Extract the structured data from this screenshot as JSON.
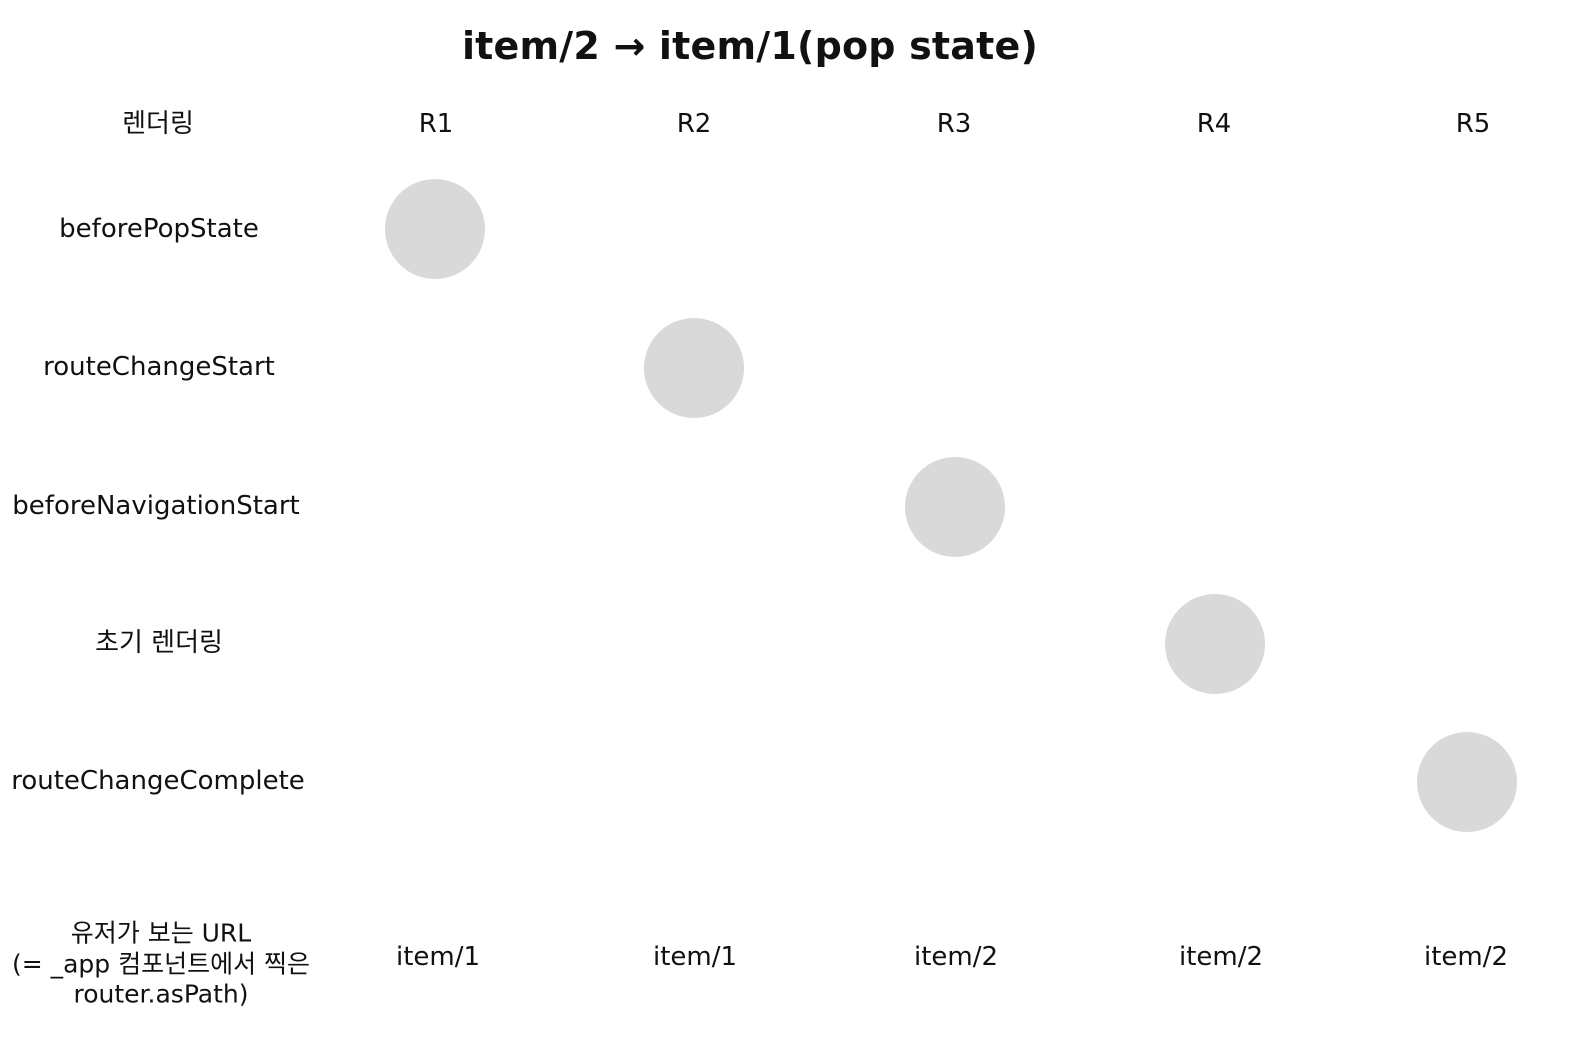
{
  "title": "item/2 → item/1(pop state)",
  "header": {
    "corner_label": "렌더링",
    "columns": [
      "R1",
      "R2",
      "R3",
      "R4",
      "R5"
    ]
  },
  "rows": [
    {
      "label": "beforePopState",
      "marked_column": "R1"
    },
    {
      "label": "routeChangeStart",
      "marked_column": "R2"
    },
    {
      "label": "beforeNavigationStart",
      "marked_column": "R3"
    },
    {
      "label": "초기 렌더링",
      "marked_column": "R4"
    },
    {
      "label": "routeChangeComplete",
      "marked_column": "R5"
    }
  ],
  "url_row": {
    "label_lines": [
      "유저가 보는 URL",
      "(= _app 컴포넌트에서 찍은",
      "router.asPath)"
    ],
    "values": [
      "item/1",
      "item/1",
      "item/2",
      "item/2",
      "item/2"
    ]
  },
  "colors": {
    "marker": "#d9d9d9",
    "text": "#111111"
  }
}
